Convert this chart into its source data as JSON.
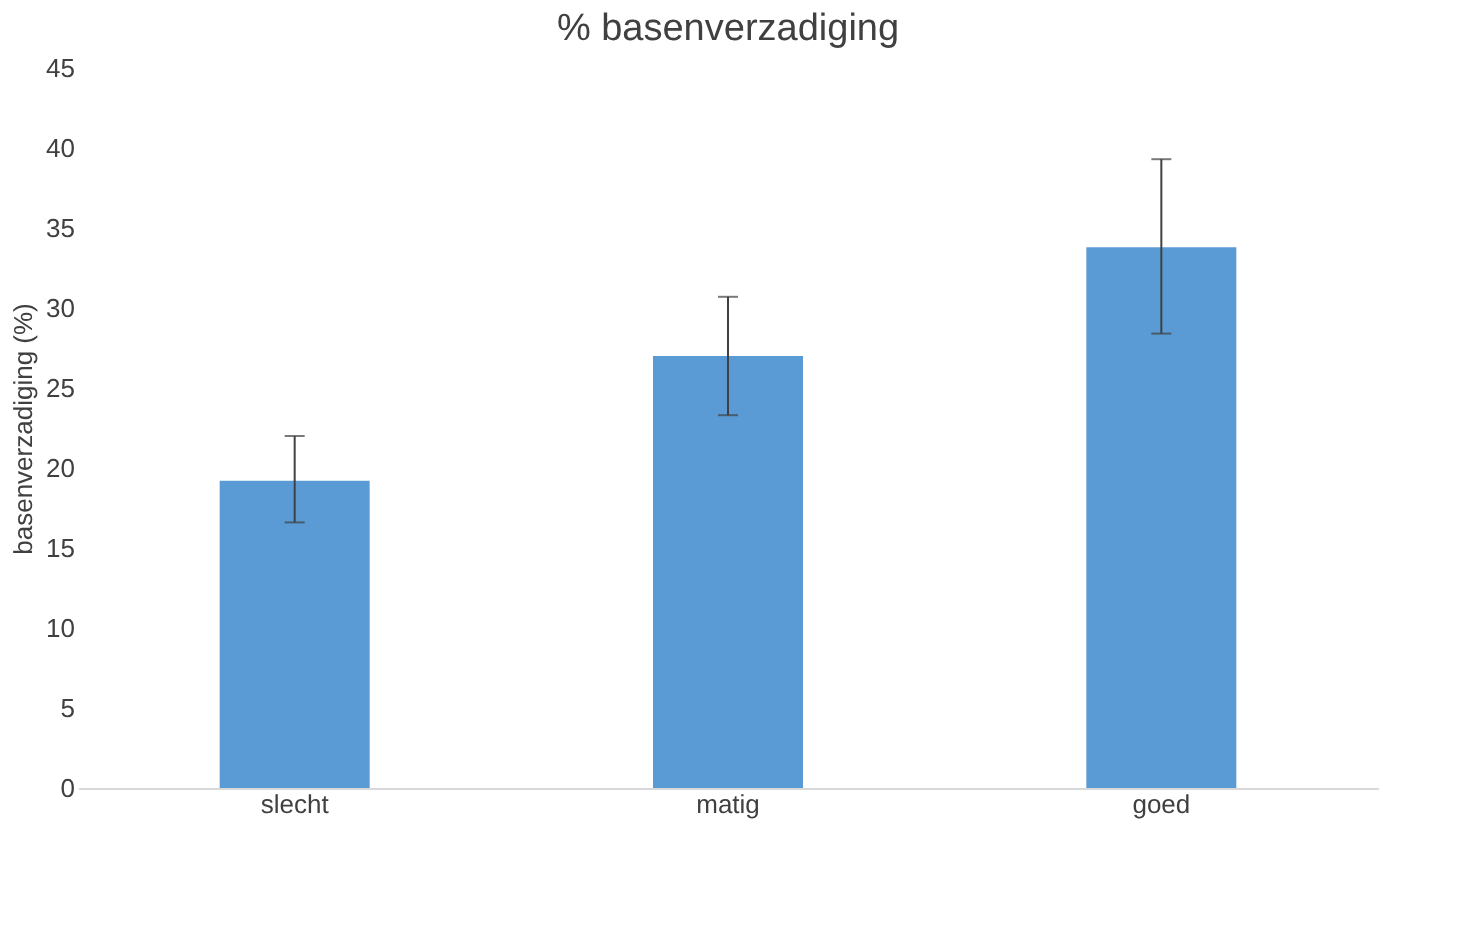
{
  "chart_data": {
    "type": "bar",
    "title": "% basenverzadiging",
    "ylabel": "basenverzadiging (%)",
    "categories": [
      "slecht",
      "matig",
      "goed"
    ],
    "values": [
      19.2,
      27.0,
      33.8
    ],
    "color": "#5b9bd5",
    "errors": [
      [
        16.6,
        22.0
      ],
      [
        23.3,
        30.7
      ],
      [
        28.4,
        39.3
      ]
    ],
    "ylim": [
      0,
      45
    ],
    "yticks": [
      0,
      5,
      10,
      15,
      20,
      25,
      30,
      35,
      40,
      45
    ],
    "grid": false
  }
}
